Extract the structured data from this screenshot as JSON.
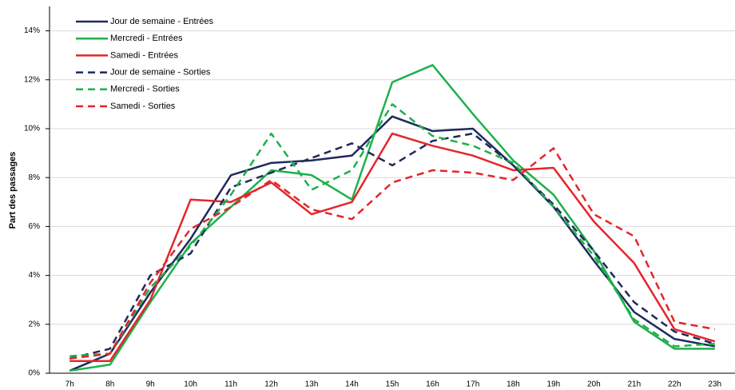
{
  "chart_data": {
    "type": "line",
    "y_label": "Part des passages",
    "categories": [
      "7h",
      "8h",
      "9h",
      "10h",
      "11h",
      "12h",
      "13h",
      "14h",
      "15h",
      "16h",
      "17h",
      "18h",
      "19h",
      "20h",
      "21h",
      "22h",
      "23h"
    ],
    "ylim": [
      0,
      15
    ],
    "yticks": [
      {
        "value": 0,
        "label": "0%"
      },
      {
        "value": 2,
        "label": "2%"
      },
      {
        "value": 4,
        "label": "4%"
      },
      {
        "value": 6,
        "label": "6%"
      },
      {
        "value": 8,
        "label": "8%"
      },
      {
        "value": 10,
        "label": "10%"
      },
      {
        "value": 12,
        "label": "12%"
      },
      {
        "value": 14,
        "label": "14%"
      }
    ],
    "grid": true,
    "legend": "top-left",
    "series": [
      {
        "name": "Jour de semaine - Entrées",
        "color": "#1f2a5c",
        "dashed": false,
        "values": [
          0.1,
          0.8,
          3.3,
          5.5,
          8.1,
          8.6,
          8.7,
          8.9,
          10.5,
          9.9,
          10.0,
          8.5,
          6.8,
          4.6,
          2.5,
          1.4,
          1.1
        ]
      },
      {
        "name": "Mercredi - Entrées",
        "color": "#1db14b",
        "dashed": false,
        "values": [
          0.1,
          0.35,
          2.9,
          5.3,
          6.8,
          8.3,
          8.1,
          7.1,
          11.9,
          12.6,
          10.6,
          8.7,
          7.3,
          5.0,
          2.1,
          1.0,
          1.0
        ]
      },
      {
        "name": "Samedi - Entrées",
        "color": "#e3262c",
        "dashed": false,
        "values": [
          0.5,
          0.5,
          3.0,
          7.1,
          7.0,
          7.8,
          6.5,
          7.0,
          9.8,
          9.3,
          8.9,
          8.3,
          8.4,
          6.2,
          4.5,
          1.8,
          1.3
        ]
      },
      {
        "name": "Jour de semaine - Sorties",
        "color": "#1f2a5c",
        "dashed": true,
        "values": [
          0.6,
          1.0,
          4.0,
          4.9,
          7.6,
          8.2,
          8.8,
          9.4,
          8.5,
          9.5,
          9.8,
          8.5,
          6.9,
          5.0,
          2.9,
          1.7,
          1.2
        ]
      },
      {
        "name": "Mercredi - Sorties",
        "color": "#1db14b",
        "dashed": true,
        "values": [
          0.7,
          0.8,
          3.5,
          5.2,
          7.3,
          9.8,
          7.5,
          8.3,
          11.0,
          9.7,
          9.3,
          8.6,
          6.8,
          4.8,
          2.2,
          1.1,
          1.2
        ]
      },
      {
        "name": "Samedi - Sorties",
        "color": "#e3262c",
        "dashed": true,
        "values": [
          0.6,
          0.8,
          3.7,
          5.9,
          6.8,
          7.9,
          6.7,
          6.3,
          7.8,
          8.3,
          8.2,
          7.9,
          9.2,
          6.5,
          5.6,
          2.1,
          1.8
        ]
      }
    ]
  }
}
